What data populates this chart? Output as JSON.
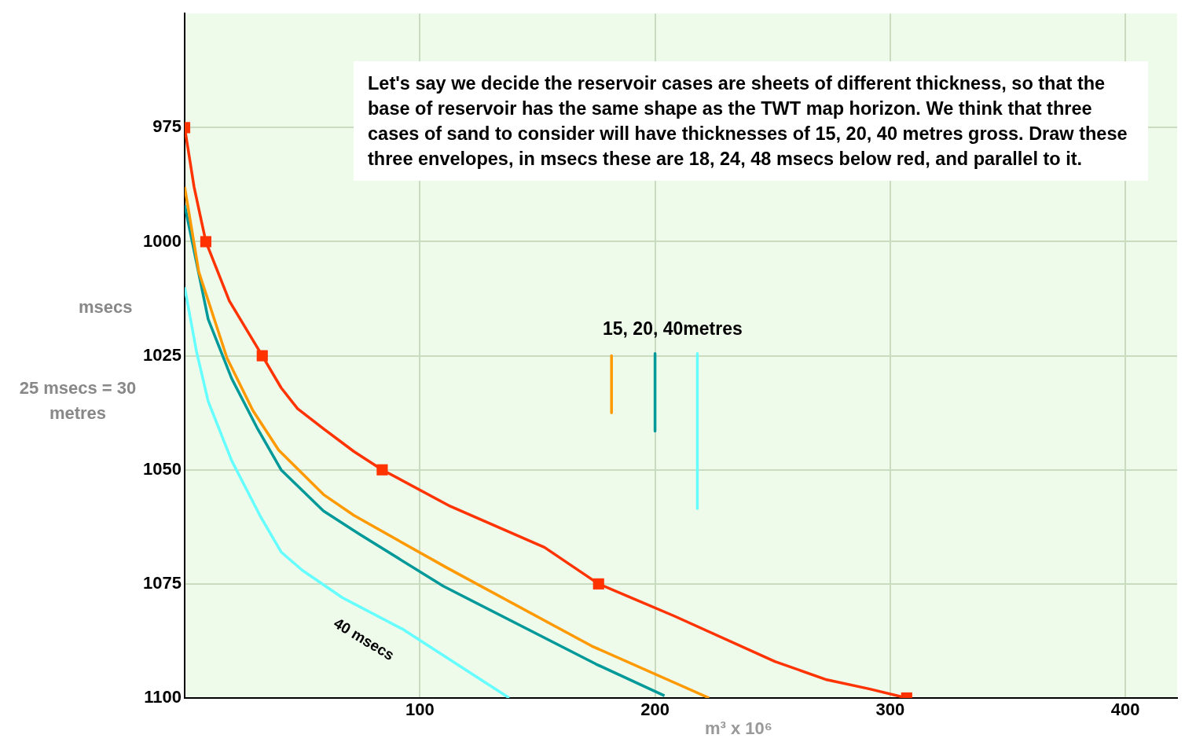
{
  "chart_data": {
    "type": "line",
    "xlabel": "m³ x 10⁶",
    "ylabel": "msecs",
    "xlim": [
      0,
      422
    ],
    "xticks": [
      100,
      200,
      300,
      400
    ],
    "ylim": [
      1100,
      950
    ],
    "yticks": [
      975,
      1000,
      1025,
      1050,
      1075,
      1100
    ],
    "grid": true,
    "legend": false,
    "marker": "none",
    "line_style": "solid",
    "series": [
      {
        "color": "#ff3300",
        "x": [
          0,
          4,
          9,
          19,
          33,
          41,
          48,
          59,
          72,
          84,
          113,
          153,
          176,
          208,
          251,
          273,
          291,
          307
        ],
        "values": [
          975,
          988,
          1000,
          1013,
          1025,
          1032,
          1036.6,
          1041,
          1046,
          1050,
          1058,
          1067,
          1075,
          1082,
          1092,
          1096,
          1098,
          1100
        ]
      },
      {
        "color": "#ff9900",
        "x": [
          0,
          6,
          18,
          29,
          40,
          59,
          72,
          112,
          173,
          223
        ],
        "values": [
          988,
          1006.6,
          1025.5,
          1037,
          1045.7,
          1055.4,
          1060,
          1071.6,
          1088.6,
          1100
        ]
      },
      {
        "color": "#009999",
        "x": [
          0,
          10,
          20,
          31,
          41,
          49,
          59,
          74,
          110,
          175,
          204
        ],
        "values": [
          992,
          1017,
          1030,
          1041,
          1050,
          1054,
          1059,
          1064,
          1075.5,
          1092.6,
          1099.5
        ]
      },
      {
        "color": "#66ffff",
        "x": [
          0,
          5,
          10,
          20,
          32,
          41,
          50,
          67,
          93,
          138
        ],
        "values": [
          1010,
          1024,
          1035,
          1048,
          1060,
          1068,
          1072,
          1078,
          1085,
          1100
        ]
      },
      {
        "type": "scatter",
        "marker": "square",
        "color": "#ff3300",
        "x": [
          0,
          9,
          33,
          84,
          176,
          307
        ],
        "values": [
          975,
          1000,
          1025,
          1050,
          1075,
          1100
        ]
      },
      {
        "color": "#ff9900",
        "x": [
          181.5,
          181.5
        ],
        "values": [
          1025,
          1037.5
        ]
      },
      {
        "color": "#009999",
        "x": [
          200,
          200
        ],
        "values": [
          1024.5,
          1041.5
        ]
      },
      {
        "color": "#66ffff",
        "x": [
          218,
          218
        ],
        "values": [
          1024.5,
          1058.5
        ]
      }
    ],
    "annotations": [
      "Let's say we decide the reservoir cases are sheets of different thickness, so that the base of reservoir has the same shape as the TWT map horizon. We think that three cases of sand to consider will have thicknesses of 15, 20, 40 metres gross. Draw these three envelopes, in msecs these are 18, 24, 48 msecs below red, and parallel to it.",
      "25 msecs = 30 metres",
      "15, 20, 40metres",
      "40 msecs"
    ]
  }
}
